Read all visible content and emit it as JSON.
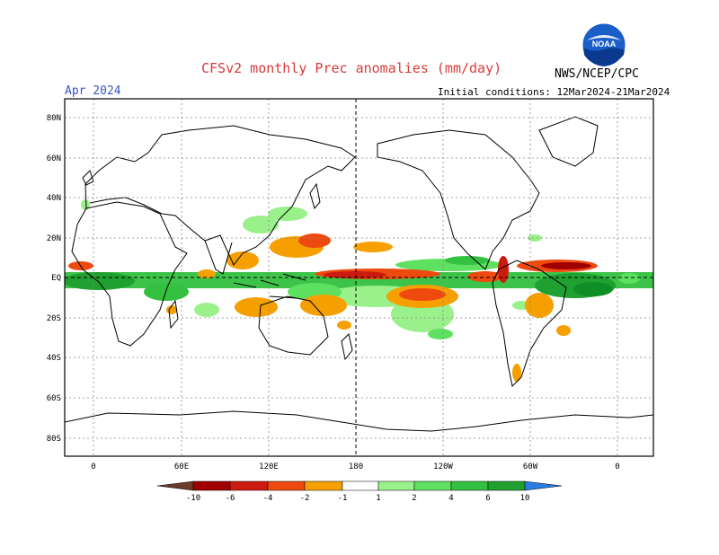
{
  "header": {
    "title": "CFSv2 monthly Prec anomalies (mm/day)",
    "agency": "NWS/NCEP/CPC",
    "month": "Apr 2024",
    "initial_conditions": "Initial conditions: 12Mar2024-21Mar2024",
    "logo_text": "NOAA"
  },
  "map": {
    "lat_labels": [
      "80N",
      "60N",
      "40N",
      "20N",
      "EQ",
      "20S",
      "40S",
      "60S",
      "80S"
    ],
    "lon_labels": [
      "0",
      "60E",
      "120E",
      "180",
      "120W",
      "60W",
      "0"
    ]
  },
  "colorbar": {
    "labels": [
      "-10",
      "-6",
      "-4",
      "-2",
      "-1",
      "1",
      "2",
      "4",
      "6",
      "10"
    ],
    "colors": [
      "#6b3a2a",
      "#a00000",
      "#cc1a10",
      "#ee4a10",
      "#f5a000",
      "#ffffff",
      "#9af08a",
      "#5ee060",
      "#34c040",
      "#20a030",
      "#0e8e24",
      "#2c7be5"
    ]
  }
}
